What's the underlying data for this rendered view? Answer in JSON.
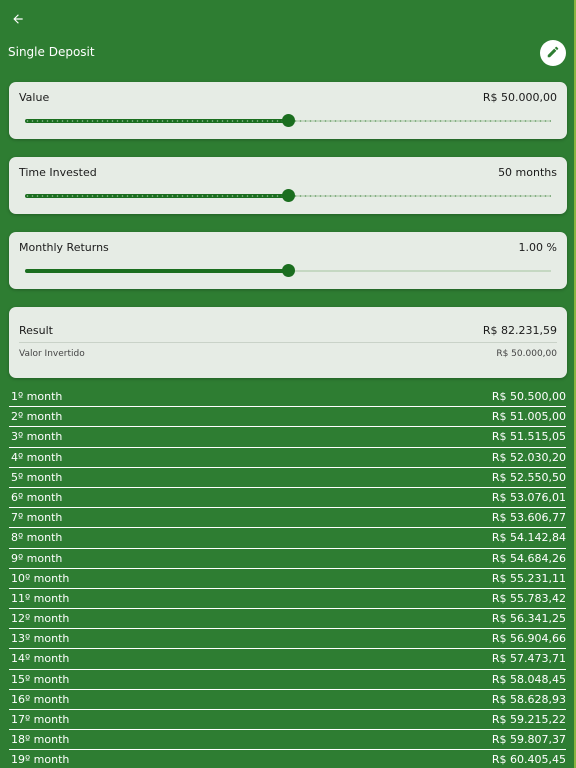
{
  "header": {
    "title": "Single Deposit",
    "back_icon": "arrow-back-icon",
    "edit_icon": "pencil-icon"
  },
  "colors": {
    "background": "#2e7d32",
    "card": "#e6ece5",
    "accent": "#1b6e1f"
  },
  "sliders": [
    {
      "label": "Value",
      "value_text": "R$ 50.000,00",
      "fraction": 0.5,
      "tick_marks": true
    },
    {
      "label": "Time Invested",
      "value_text": "50 months",
      "fraction": 0.5,
      "tick_marks": true
    },
    {
      "label": "Monthly Returns",
      "value_text": "1.00 %",
      "fraction": 0.5,
      "tick_marks": false
    }
  ],
  "result": {
    "label": "Result",
    "value": "R$ 82.231,59",
    "invested_label": "Valor Invertido",
    "invested_value": "R$ 50.000,00"
  },
  "months": [
    {
      "label": "1º month",
      "value": "R$ 50.500,00"
    },
    {
      "label": "2º month",
      "value": "R$ 51.005,00"
    },
    {
      "label": "3º month",
      "value": "R$ 51.515,05"
    },
    {
      "label": "4º month",
      "value": "R$ 52.030,20"
    },
    {
      "label": "5º month",
      "value": "R$ 52.550,50"
    },
    {
      "label": "6º month",
      "value": "R$ 53.076,01"
    },
    {
      "label": "7º month",
      "value": "R$ 53.606,77"
    },
    {
      "label": "8º month",
      "value": "R$ 54.142,84"
    },
    {
      "label": "9º month",
      "value": "R$ 54.684,26"
    },
    {
      "label": "10º month",
      "value": "R$ 55.231,11"
    },
    {
      "label": "11º month",
      "value": "R$ 55.783,42"
    },
    {
      "label": "12º month",
      "value": "R$ 56.341,25"
    },
    {
      "label": "13º month",
      "value": "R$ 56.904,66"
    },
    {
      "label": "14º month",
      "value": "R$ 57.473,71"
    },
    {
      "label": "15º month",
      "value": "R$ 58.048,45"
    },
    {
      "label": "16º month",
      "value": "R$ 58.628,93"
    },
    {
      "label": "17º month",
      "value": "R$ 59.215,22"
    },
    {
      "label": "18º month",
      "value": "R$ 59.807,37"
    },
    {
      "label": "19º month",
      "value": "R$ 60.405,45"
    }
  ]
}
